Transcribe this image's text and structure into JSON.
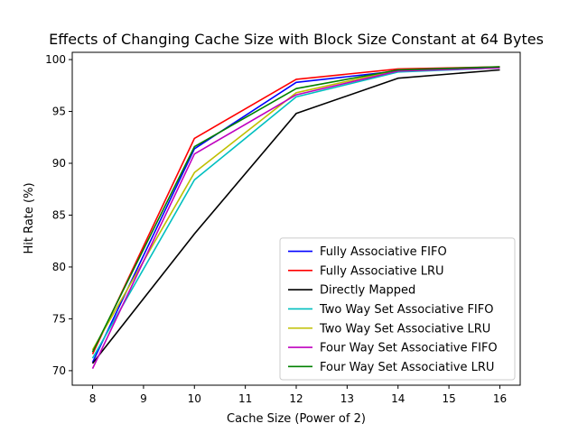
{
  "chart_data": {
    "type": "line",
    "title": "Effects of Changing Cache Size with Block Size Constant at 64 Bytes",
    "xlabel": "Cache Size (Power of 2)",
    "ylabel": "Hit Rate (%)",
    "x": [
      8,
      10,
      12,
      14,
      16
    ],
    "xlim": [
      7.6,
      16.4
    ],
    "ylim": [
      68.6,
      100.7
    ],
    "xticks": [
      8,
      9,
      10,
      11,
      12,
      13,
      14,
      15,
      16
    ],
    "yticks": [
      70,
      75,
      80,
      85,
      90,
      95,
      100
    ],
    "grid": false,
    "legend_position": "lower-right",
    "series": [
      {
        "name": "Fully Associative FIFO",
        "color": "#0000ff",
        "values": [
          70.8,
          91.4,
          97.8,
          98.9,
          99.2
        ]
      },
      {
        "name": "Fully Associative LRU",
        "color": "#ff0000",
        "values": [
          71.6,
          92.4,
          98.1,
          99.1,
          99.3
        ]
      },
      {
        "name": "Directly Mapped",
        "color": "#000000",
        "values": [
          70.7,
          83.2,
          94.8,
          98.2,
          99.0
        ]
      },
      {
        "name": "Two Way Set Associative FIFO",
        "color": "#00bfbf",
        "values": [
          71.2,
          88.4,
          96.4,
          98.8,
          99.2
        ]
      },
      {
        "name": "Two Way Set Associative LRU",
        "color": "#bfbf00",
        "values": [
          72.0,
          89.1,
          96.8,
          99.0,
          99.2
        ]
      },
      {
        "name": "Four Way Set Associative FIFO",
        "color": "#bf00bf",
        "values": [
          70.2,
          90.9,
          96.6,
          98.9,
          99.2
        ]
      },
      {
        "name": "Four Way Set Associative LRU",
        "color": "#008000",
        "values": [
          71.8,
          91.6,
          97.2,
          99.0,
          99.3
        ]
      }
    ]
  }
}
